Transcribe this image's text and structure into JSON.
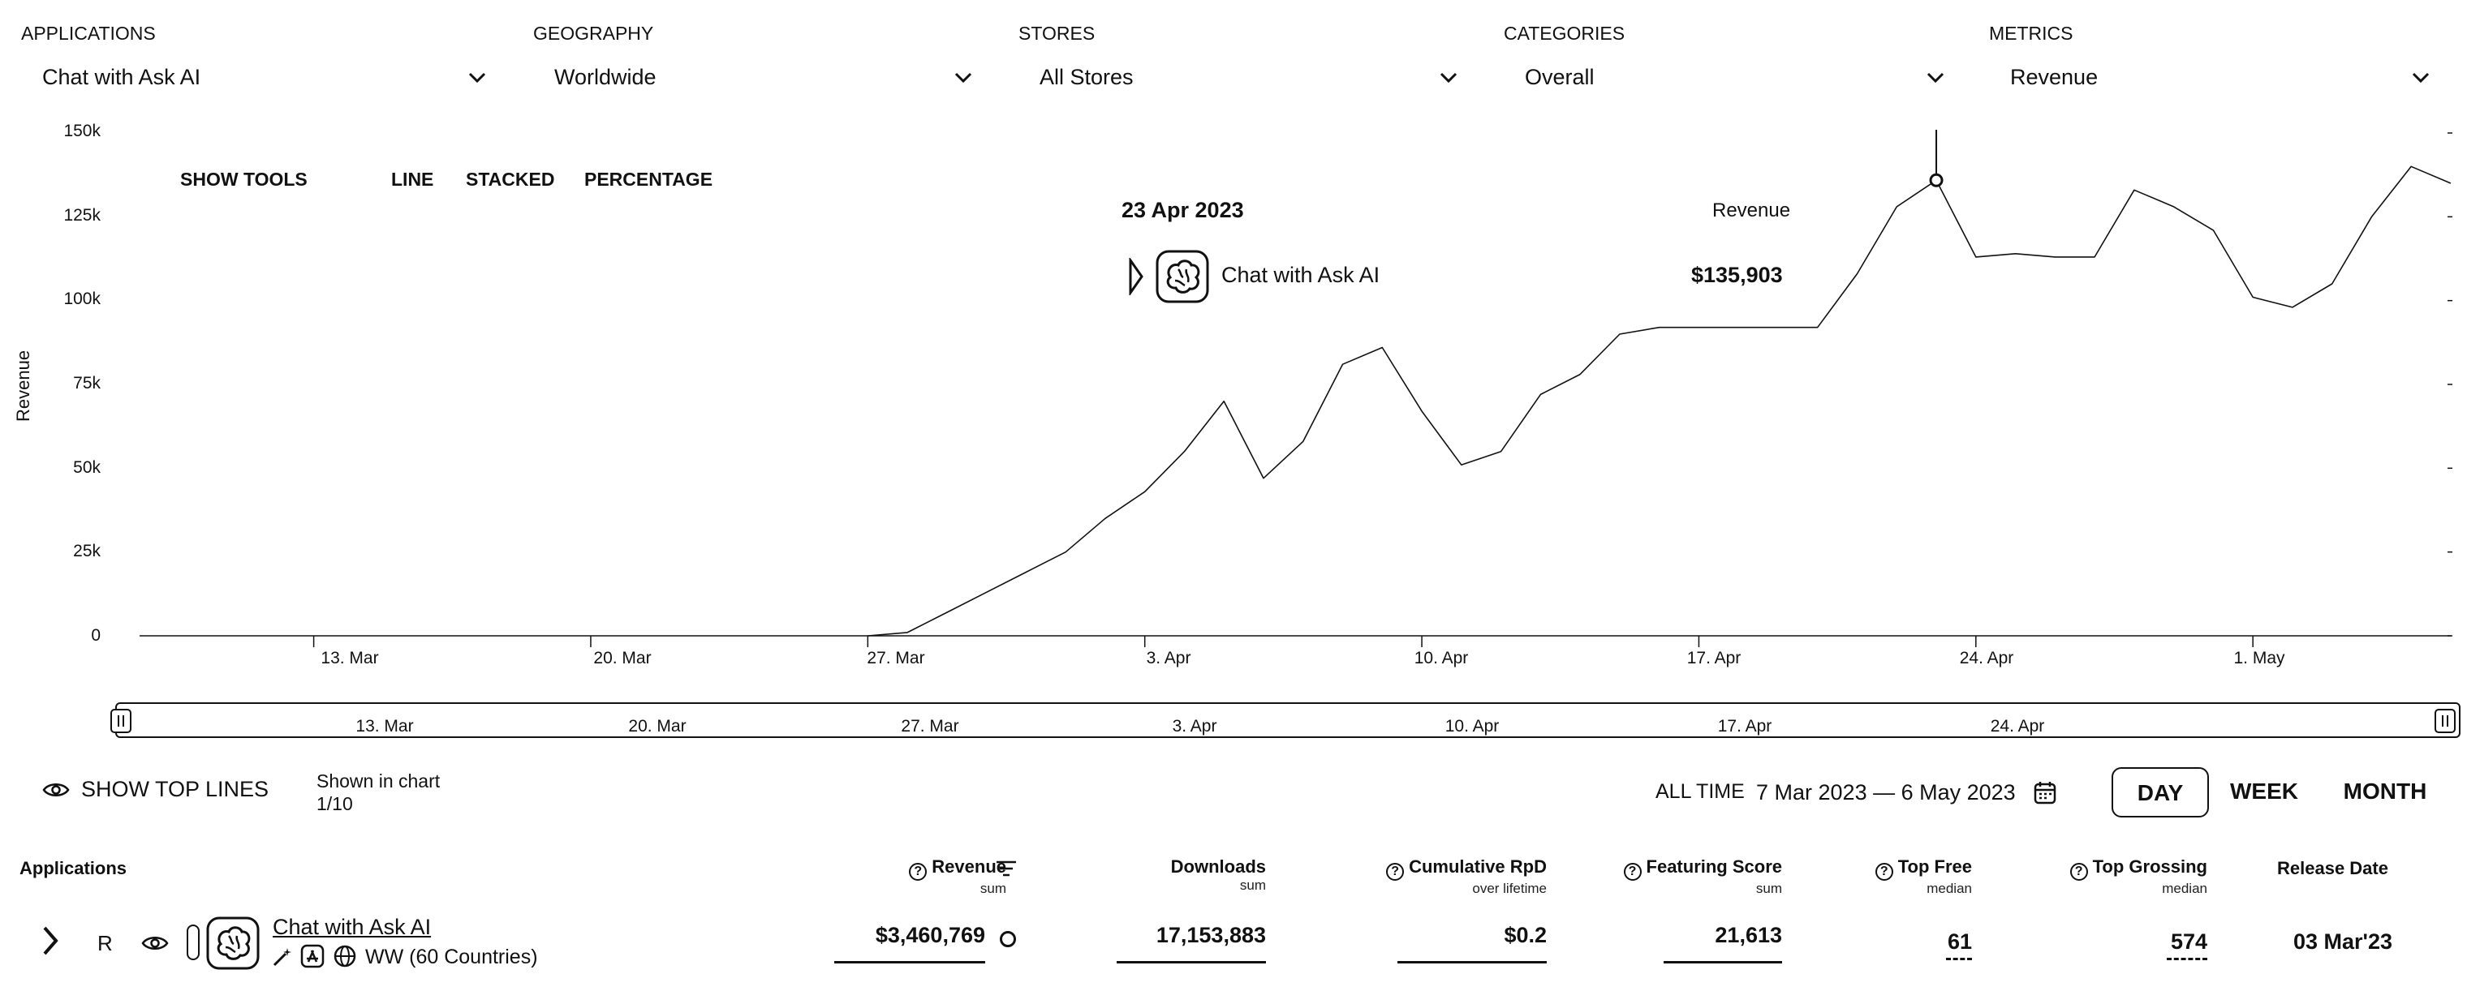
{
  "filters": [
    {
      "label": "APPLICATIONS",
      "value": "Chat with Ask AI"
    },
    {
      "label": "GEOGRAPHY",
      "value": "Worldwide"
    },
    {
      "label": "STORES",
      "value": "All Stores"
    },
    {
      "label": "CATEGORIES",
      "value": "Overall"
    },
    {
      "label": "METRICS",
      "value": "Revenue"
    }
  ],
  "tools": {
    "show_tools": "SHOW TOOLS",
    "line": "LINE",
    "stacked": "STACKED",
    "percentage": "PERCENTAGE"
  },
  "tooltip": {
    "date": "23 Apr 2023",
    "metric": "Revenue",
    "app": "Chat with Ask AI",
    "value": "$135,903"
  },
  "navigator": {
    "ticks": [
      "13. Mar",
      "20. Mar",
      "27. Mar",
      "3. Apr",
      "10. Apr",
      "17. Apr",
      "24. Apr"
    ]
  },
  "controls": {
    "show_top_lines": "SHOW TOP LINES",
    "shown_in_chart": "Shown in chart",
    "shown_count": "1/10",
    "all_time": "ALL TIME",
    "date_range": "7 Mar 2023 — 6 May 2023",
    "day": "DAY",
    "week": "WEEK",
    "month": "MONTH"
  },
  "table": {
    "headers": {
      "applications": "Applications",
      "revenue": "Revenue",
      "revenue_sub": "sum",
      "downloads": "Downloads",
      "downloads_sub": "sum",
      "rpd": "Cumulative RpD",
      "rpd_sub": "over lifetime",
      "featuring": "Featuring Score",
      "featuring_sub": "sum",
      "top_free": "Top Free",
      "top_free_sub": "median",
      "top_grossing": "Top Grossing",
      "top_grossing_sub": "median",
      "release": "Release Date"
    },
    "row": {
      "badge": "R",
      "name": "Chat with Ask AI",
      "region": "WW (60 Countries)",
      "revenue": "$3,460,769",
      "downloads": "17,153,883",
      "rpd": "$0.2",
      "featuring": "21,613",
      "top_free": "61",
      "top_grossing": "574",
      "release": "03 Mar'23"
    }
  },
  "chart_data": {
    "type": "line",
    "ylabel": "Revenue",
    "ylim": [
      0,
      150000
    ],
    "yticks": [
      0,
      25000,
      50000,
      75000,
      100000,
      125000,
      150000
    ],
    "ytick_labels": [
      "0",
      "25k",
      "50k",
      "75k",
      "100k",
      "125k",
      "150k"
    ],
    "xlim": [
      "2023-03-07",
      "2023-05-06"
    ],
    "xticks": [
      {
        "date": "2023-03-13",
        "label": "13. Mar"
      },
      {
        "date": "2023-03-20",
        "label": "20. Mar"
      },
      {
        "date": "2023-03-27",
        "label": "27. Mar"
      },
      {
        "date": "2023-04-03",
        "label": "3. Apr"
      },
      {
        "date": "2023-04-10",
        "label": "10. Apr"
      },
      {
        "date": "2023-04-17",
        "label": "17. Apr"
      },
      {
        "date": "2023-04-24",
        "label": "24. Apr"
      },
      {
        "date": "2023-05-01",
        "label": "1. May"
      }
    ],
    "highlight": {
      "date": "2023-04-23",
      "value": 135903
    },
    "series": [
      {
        "name": "Chat with Ask AI",
        "points": [
          [
            "2023-03-27",
            0
          ],
          [
            "2023-03-28",
            1000
          ],
          [
            "2023-03-29",
            7000
          ],
          [
            "2023-03-30",
            13000
          ],
          [
            "2023-03-31",
            19000
          ],
          [
            "2023-04-01",
            25000
          ],
          [
            "2023-04-02",
            35000
          ],
          [
            "2023-04-03",
            43000
          ],
          [
            "2023-04-04",
            55000
          ],
          [
            "2023-04-05",
            70000
          ],
          [
            "2023-04-06",
            47000
          ],
          [
            "2023-04-07",
            58000
          ],
          [
            "2023-04-08",
            81000
          ],
          [
            "2023-04-09",
            86000
          ],
          [
            "2023-04-10",
            67000
          ],
          [
            "2023-04-11",
            51000
          ],
          [
            "2023-04-12",
            55000
          ],
          [
            "2023-04-13",
            72000
          ],
          [
            "2023-04-14",
            78000
          ],
          [
            "2023-04-15",
            90000
          ],
          [
            "2023-04-16",
            92000
          ],
          [
            "2023-04-17",
            92000
          ],
          [
            "2023-04-18",
            92000
          ],
          [
            "2023-04-19",
            92000
          ],
          [
            "2023-04-20",
            92000
          ],
          [
            "2023-04-21",
            108000
          ],
          [
            "2023-04-22",
            128000
          ],
          [
            "2023-04-23",
            135903
          ],
          [
            "2023-04-24",
            113000
          ],
          [
            "2023-04-25",
            114000
          ],
          [
            "2023-04-26",
            113000
          ],
          [
            "2023-04-27",
            113000
          ],
          [
            "2023-04-28",
            133000
          ],
          [
            "2023-04-29",
            128000
          ],
          [
            "2023-04-30",
            121000
          ],
          [
            "2023-05-01",
            101000
          ],
          [
            "2023-05-02",
            98000
          ],
          [
            "2023-05-03",
            105000
          ],
          [
            "2023-05-04",
            125000
          ],
          [
            "2023-05-05",
            140000
          ],
          [
            "2023-05-06",
            135000
          ]
        ]
      }
    ]
  }
}
